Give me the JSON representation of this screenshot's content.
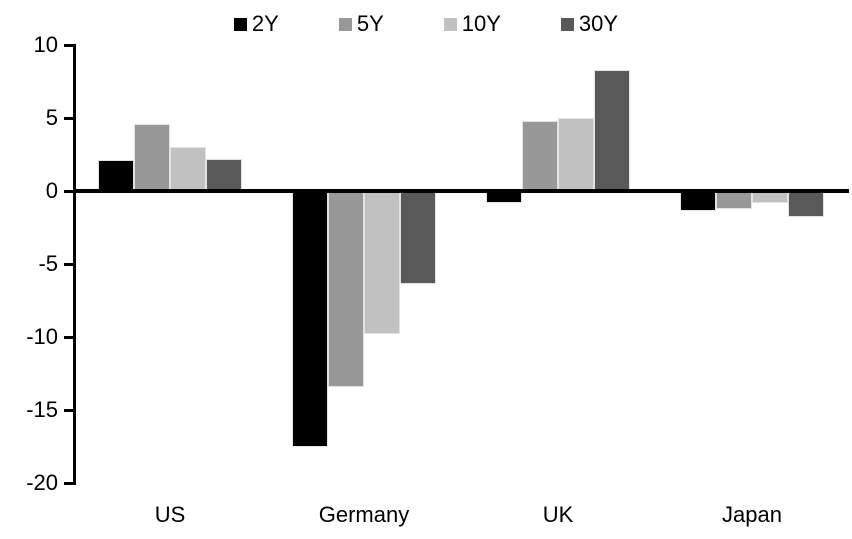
{
  "chart_data": {
    "type": "bar",
    "title": "",
    "xlabel": "",
    "ylabel": "",
    "categories": [
      "US",
      "Germany",
      "UK",
      "Japan"
    ],
    "series": [
      {
        "name": "2Y",
        "color": "#000000",
        "values": [
          2.1,
          -17.5,
          -0.8,
          -1.4
        ]
      },
      {
        "name": "5Y",
        "color": "#989898",
        "values": [
          4.6,
          -13.4,
          4.8,
          -1.2
        ]
      },
      {
        "name": "10Y",
        "color": "#c1c1c1",
        "values": [
          3.0,
          -9.8,
          5.0,
          -0.8
        ]
      },
      {
        "name": "30Y",
        "color": "#595959",
        "values": [
          2.2,
          -6.4,
          8.3,
          -1.8
        ]
      }
    ],
    "ylim": [
      -20,
      10
    ],
    "yticks": [
      10,
      5,
      0,
      -5,
      -10,
      -15,
      -20
    ],
    "legend_position": "top",
    "grid": false,
    "colors": {
      "axis": "#000000",
      "text": "#000000",
      "background": "#ffffff",
      "bar_outline": "#e3e3e3"
    }
  }
}
